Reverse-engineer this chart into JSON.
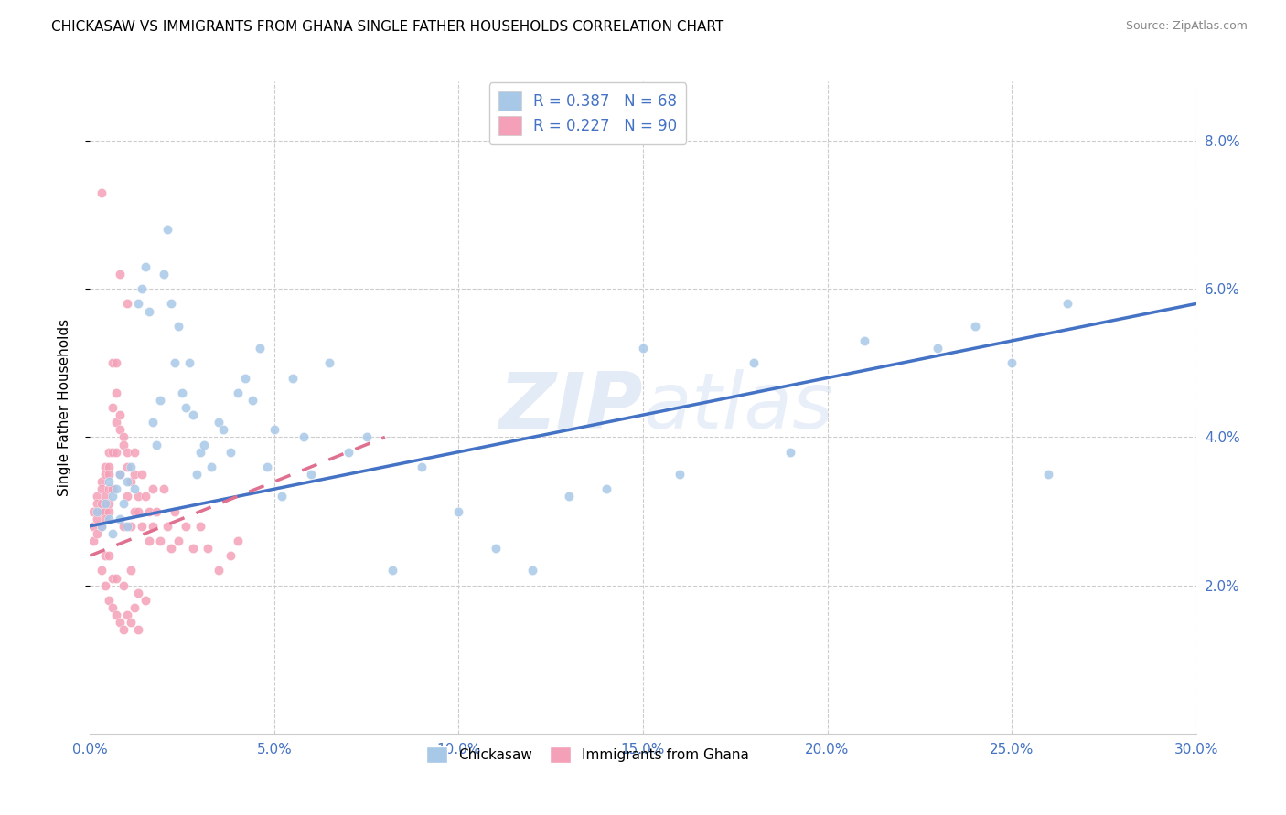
{
  "title": "CHICKASAW VS IMMIGRANTS FROM GHANA SINGLE FATHER HOUSEHOLDS CORRELATION CHART",
  "source": "Source: ZipAtlas.com",
  "xlim": [
    0,
    0.3
  ],
  "ylim": [
    0,
    0.088
  ],
  "ylabel": "Single Father Households",
  "legend_labels": [
    "Chickasaw",
    "Immigrants from Ghana"
  ],
  "R_blue": 0.387,
  "N_blue": 68,
  "R_pink": 0.227,
  "N_pink": 90,
  "color_blue": "#a8c8e8",
  "color_pink": "#f4a0b8",
  "color_blue_line": "#4472C4",
  "color_pink_line": "#e07090",
  "watermark": "ZIPAtlas",
  "axis_color": "#4472C4",
  "blue_line": [
    [
      0.0,
      0.028
    ],
    [
      0.3,
      0.058
    ]
  ],
  "pink_line": [
    [
      0.0,
      0.024
    ],
    [
      0.08,
      0.04
    ]
  ],
  "blue_scatter": [
    [
      0.002,
      0.03
    ],
    [
      0.003,
      0.028
    ],
    [
      0.004,
      0.031
    ],
    [
      0.005,
      0.029
    ],
    [
      0.005,
      0.034
    ],
    [
      0.006,
      0.032
    ],
    [
      0.006,
      0.027
    ],
    [
      0.007,
      0.033
    ],
    [
      0.008,
      0.029
    ],
    [
      0.008,
      0.035
    ],
    [
      0.009,
      0.031
    ],
    [
      0.01,
      0.034
    ],
    [
      0.01,
      0.028
    ],
    [
      0.011,
      0.036
    ],
    [
      0.012,
      0.033
    ],
    [
      0.013,
      0.058
    ],
    [
      0.014,
      0.06
    ],
    [
      0.015,
      0.063
    ],
    [
      0.016,
      0.057
    ],
    [
      0.017,
      0.042
    ],
    [
      0.018,
      0.039
    ],
    [
      0.019,
      0.045
    ],
    [
      0.02,
      0.062
    ],
    [
      0.021,
      0.068
    ],
    [
      0.022,
      0.058
    ],
    [
      0.023,
      0.05
    ],
    [
      0.024,
      0.055
    ],
    [
      0.025,
      0.046
    ],
    [
      0.026,
      0.044
    ],
    [
      0.027,
      0.05
    ],
    [
      0.028,
      0.043
    ],
    [
      0.029,
      0.035
    ],
    [
      0.03,
      0.038
    ],
    [
      0.031,
      0.039
    ],
    [
      0.033,
      0.036
    ],
    [
      0.035,
      0.042
    ],
    [
      0.036,
      0.041
    ],
    [
      0.038,
      0.038
    ],
    [
      0.04,
      0.046
    ],
    [
      0.042,
      0.048
    ],
    [
      0.044,
      0.045
    ],
    [
      0.046,
      0.052
    ],
    [
      0.048,
      0.036
    ],
    [
      0.05,
      0.041
    ],
    [
      0.052,
      0.032
    ],
    [
      0.055,
      0.048
    ],
    [
      0.058,
      0.04
    ],
    [
      0.06,
      0.035
    ],
    [
      0.065,
      0.05
    ],
    [
      0.07,
      0.038
    ],
    [
      0.075,
      0.04
    ],
    [
      0.082,
      0.022
    ],
    [
      0.09,
      0.036
    ],
    [
      0.1,
      0.03
    ],
    [
      0.11,
      0.025
    ],
    [
      0.12,
      0.022
    ],
    [
      0.13,
      0.032
    ],
    [
      0.14,
      0.033
    ],
    [
      0.15,
      0.052
    ],
    [
      0.16,
      0.035
    ],
    [
      0.18,
      0.05
    ],
    [
      0.19,
      0.038
    ],
    [
      0.21,
      0.053
    ],
    [
      0.23,
      0.052
    ],
    [
      0.24,
      0.055
    ],
    [
      0.25,
      0.05
    ],
    [
      0.26,
      0.035
    ],
    [
      0.265,
      0.058
    ]
  ],
  "pink_scatter": [
    [
      0.001,
      0.028
    ],
    [
      0.001,
      0.026
    ],
    [
      0.001,
      0.03
    ],
    [
      0.002,
      0.029
    ],
    [
      0.002,
      0.032
    ],
    [
      0.002,
      0.027
    ],
    [
      0.002,
      0.031
    ],
    [
      0.003,
      0.03
    ],
    [
      0.003,
      0.034
    ],
    [
      0.003,
      0.028
    ],
    [
      0.003,
      0.033
    ],
    [
      0.003,
      0.031
    ],
    [
      0.004,
      0.03
    ],
    [
      0.004,
      0.036
    ],
    [
      0.004,
      0.032
    ],
    [
      0.004,
      0.029
    ],
    [
      0.004,
      0.035
    ],
    [
      0.005,
      0.033
    ],
    [
      0.005,
      0.03
    ],
    [
      0.005,
      0.036
    ],
    [
      0.005,
      0.031
    ],
    [
      0.005,
      0.035
    ],
    [
      0.005,
      0.038
    ],
    [
      0.006,
      0.033
    ],
    [
      0.006,
      0.05
    ],
    [
      0.006,
      0.044
    ],
    [
      0.006,
      0.038
    ],
    [
      0.007,
      0.05
    ],
    [
      0.007,
      0.042
    ],
    [
      0.007,
      0.046
    ],
    [
      0.007,
      0.038
    ],
    [
      0.008,
      0.043
    ],
    [
      0.008,
      0.035
    ],
    [
      0.008,
      0.041
    ],
    [
      0.009,
      0.04
    ],
    [
      0.009,
      0.028
    ],
    [
      0.009,
      0.039
    ],
    [
      0.01,
      0.038
    ],
    [
      0.01,
      0.036
    ],
    [
      0.01,
      0.032
    ],
    [
      0.011,
      0.034
    ],
    [
      0.011,
      0.028
    ],
    [
      0.012,
      0.038
    ],
    [
      0.012,
      0.03
    ],
    [
      0.012,
      0.035
    ],
    [
      0.013,
      0.032
    ],
    [
      0.013,
      0.03
    ],
    [
      0.014,
      0.035
    ],
    [
      0.014,
      0.028
    ],
    [
      0.015,
      0.032
    ],
    [
      0.016,
      0.03
    ],
    [
      0.016,
      0.026
    ],
    [
      0.017,
      0.033
    ],
    [
      0.017,
      0.028
    ],
    [
      0.018,
      0.03
    ],
    [
      0.019,
      0.026
    ],
    [
      0.02,
      0.033
    ],
    [
      0.021,
      0.028
    ],
    [
      0.022,
      0.025
    ],
    [
      0.023,
      0.03
    ],
    [
      0.024,
      0.026
    ],
    [
      0.026,
      0.028
    ],
    [
      0.028,
      0.025
    ],
    [
      0.03,
      0.028
    ],
    [
      0.032,
      0.025
    ],
    [
      0.035,
      0.022
    ],
    [
      0.038,
      0.024
    ],
    [
      0.04,
      0.026
    ],
    [
      0.003,
      0.073
    ],
    [
      0.003,
      0.022
    ],
    [
      0.004,
      0.02
    ],
    [
      0.005,
      0.018
    ],
    [
      0.006,
      0.017
    ],
    [
      0.007,
      0.016
    ],
    [
      0.008,
      0.015
    ],
    [
      0.009,
      0.014
    ],
    [
      0.01,
      0.016
    ],
    [
      0.011,
      0.015
    ],
    [
      0.012,
      0.017
    ],
    [
      0.013,
      0.014
    ],
    [
      0.015,
      0.018
    ],
    [
      0.008,
      0.062
    ],
    [
      0.01,
      0.058
    ],
    [
      0.004,
      0.024
    ],
    [
      0.005,
      0.024
    ],
    [
      0.006,
      0.021
    ],
    [
      0.007,
      0.021
    ],
    [
      0.009,
      0.02
    ],
    [
      0.011,
      0.022
    ],
    [
      0.013,
      0.019
    ]
  ]
}
